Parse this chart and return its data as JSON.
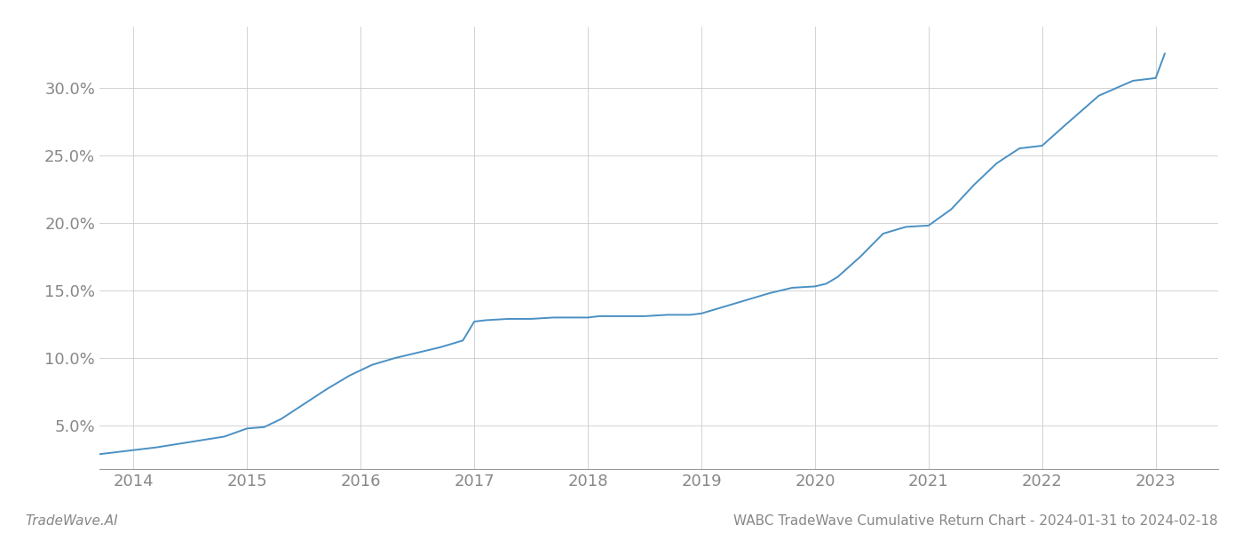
{
  "title_bottom": "WABC TradeWave Cumulative Return Chart - 2024-01-31 to 2024-02-18",
  "watermark": "TradeWave.AI",
  "line_color": "#4a90c4",
  "line_width": 1.4,
  "background_color": "#ffffff",
  "grid_color": "#cccccc",
  "x_ticks": [
    2014,
    2015,
    2016,
    2017,
    2018,
    2019,
    2020,
    2021,
    2022,
    2023
  ],
  "y_ticks": [
    0.05,
    0.1,
    0.15,
    0.2,
    0.25,
    0.3
  ],
  "y_tick_labels": [
    "5.0%",
    "10.0%",
    "15.0%",
    "20.0%",
    "25.0%",
    "30.0%"
  ],
  "xlim": [
    2013.7,
    2023.55
  ],
  "ylim": [
    0.018,
    0.345
  ],
  "data_x": [
    2013.08,
    2013.2,
    2013.4,
    2013.6,
    2013.8,
    2014.0,
    2014.2,
    2014.5,
    2014.8,
    2015.0,
    2015.15,
    2015.3,
    2015.5,
    2015.7,
    2015.9,
    2016.1,
    2016.3,
    2016.5,
    2016.7,
    2016.9,
    2017.0,
    2017.1,
    2017.3,
    2017.5,
    2017.7,
    2017.9,
    2018.0,
    2018.1,
    2018.3,
    2018.5,
    2018.7,
    2018.9,
    2019.0,
    2019.2,
    2019.4,
    2019.6,
    2019.8,
    2020.0,
    2020.1,
    2020.2,
    2020.4,
    2020.6,
    2020.8,
    2021.0,
    2021.2,
    2021.4,
    2021.6,
    2021.8,
    2022.0,
    2022.2,
    2022.5,
    2022.8,
    2023.0,
    2023.08
  ],
  "data_y": [
    0.026,
    0.026,
    0.027,
    0.028,
    0.03,
    0.032,
    0.034,
    0.038,
    0.042,
    0.048,
    0.049,
    0.055,
    0.066,
    0.077,
    0.087,
    0.095,
    0.1,
    0.104,
    0.108,
    0.113,
    0.127,
    0.128,
    0.129,
    0.129,
    0.13,
    0.13,
    0.13,
    0.131,
    0.131,
    0.131,
    0.132,
    0.132,
    0.133,
    0.138,
    0.143,
    0.148,
    0.152,
    0.153,
    0.155,
    0.16,
    0.175,
    0.192,
    0.197,
    0.198,
    0.21,
    0.228,
    0.244,
    0.255,
    0.257,
    0.272,
    0.294,
    0.305,
    0.307,
    0.325
  ],
  "title_fontsize": 11,
  "watermark_fontsize": 11,
  "tick_fontsize": 13,
  "tick_color": "#888888",
  "spine_color": "#999999"
}
